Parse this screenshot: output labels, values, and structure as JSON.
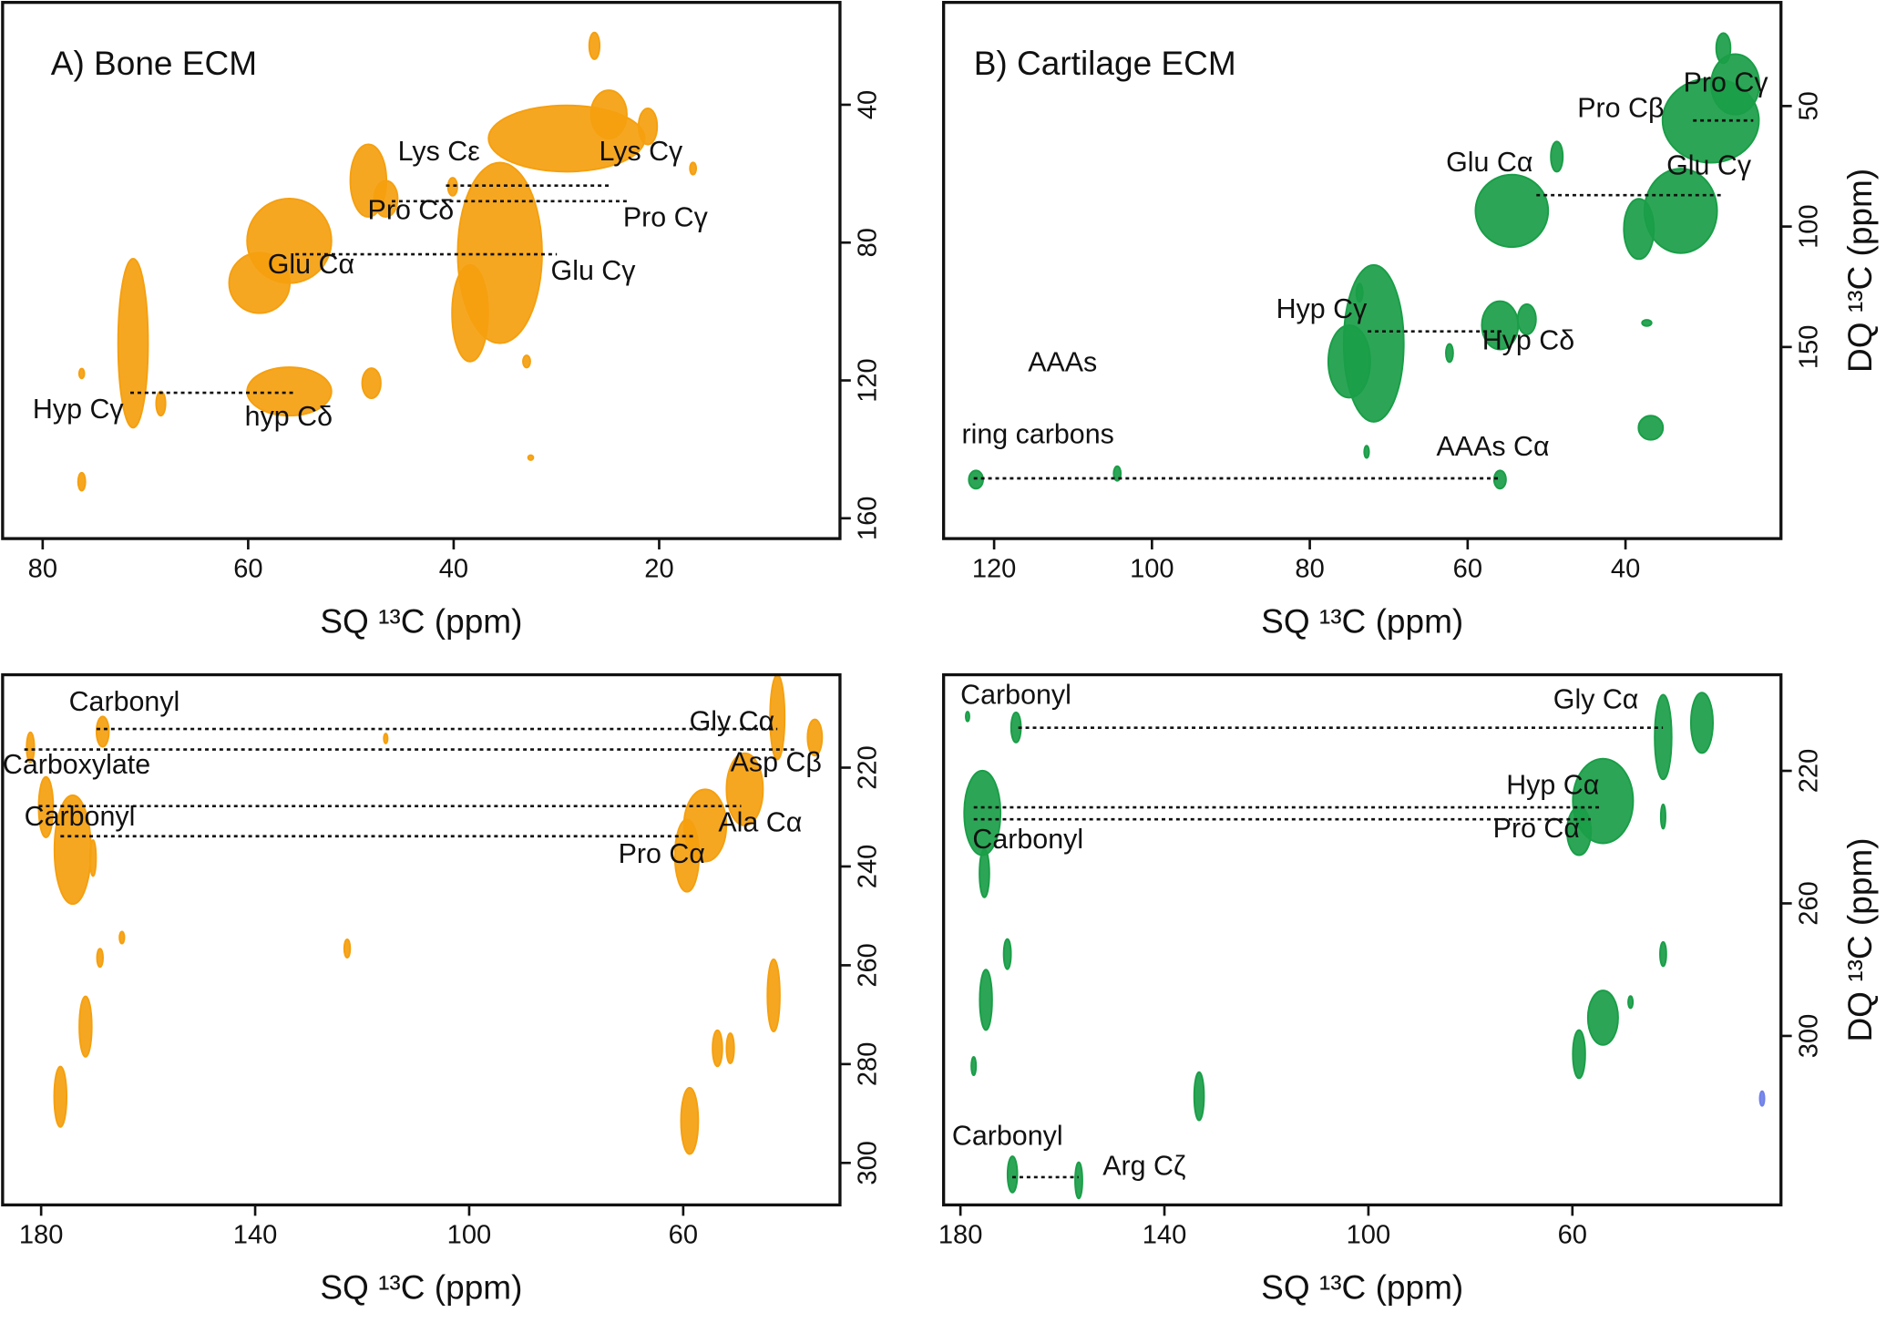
{
  "chart_data": [
    {
      "type": "contour",
      "title": "A) Bone ECM",
      "xlabel": "SQ ¹³C (ppm)",
      "xlim": [
        83.9,
        2.4
      ],
      "ylim": [
        165.9,
        10.3
      ],
      "xticks": [
        80,
        60,
        40,
        20
      ],
      "yticks": [
        40,
        80,
        120,
        160
      ],
      "series": [
        {
          "color": "#f5a00f",
          "x": [
            26.3,
            29.0,
            24.9,
            21.1,
            35.5,
            38.4,
            48.3,
            46.6,
            56.0,
            58.9,
            56.0,
            48.0,
            71.2,
            68.5,
            40.1,
            76.2,
            76.2,
            16.7,
            32.5,
            32.9
          ],
          "y": [
            22.9,
            49.8,
            42.8,
            46.3,
            83.0,
            100.5,
            62.0,
            67.3,
            79.5,
            91.7,
            123.2,
            120.8,
            109.2,
            126.7,
            63.8,
            149.4,
            118.0,
            58.5,
            142.4,
            114.5
          ],
          "x_width": [
            1.0,
            15.2,
            3.5,
            1.8,
            8.2,
            3.5,
            3.5,
            2.3,
            8.2,
            5.9,
            8.2,
            1.8,
            2.9,
            0.9,
            0.9,
            0.7,
            0.5,
            0.6,
            0.5,
            0.7
          ],
          "y_width": [
            7.7,
            19.2,
            14.0,
            10.5,
            52.4,
            28.0,
            21.0,
            10.5,
            24.5,
            17.5,
            14.0,
            8.7,
            49.0,
            7.0,
            5.2,
            5.2,
            2.8,
            3.5,
            1.4,
            3.5
          ]
        }
      ],
      "annotations": [
        "Lys Cε",
        "Lys Cγ",
        "Pro Cδ",
        "Pro Cγ",
        "Glu Cα",
        "Glu Cγ",
        "Hyp Cγ",
        "hyp Cδ"
      ]
    },
    {
      "type": "contour",
      "title": "B) Cartilage ECM",
      "xlabel": "SQ ¹³C (ppm)",
      "ylabel": "DQ ¹³C (ppm)",
      "xlim": [
        126.4,
        20.3
      ],
      "ylim": [
        229.5,
        7
      ],
      "xticks": [
        120,
        100,
        80,
        60,
        40
      ],
      "yticks": [
        50,
        100,
        150
      ],
      "series": [
        {
          "color": "#1a9e48",
          "x": [
            27.6,
            29.2,
            26.1,
            33.0,
            38.3,
            54.4,
            48.7,
            71.9,
            75.0,
            55.9,
            52.5,
            62.3,
            36.8,
            37.3,
            73.7,
            72.8,
            122.3,
            104.4,
            55.9
          ],
          "y": [
            26,
            56,
            41,
            93.5,
            101,
            93.5,
            71,
            148.5,
            156,
            141,
            138.5,
            152.5,
            183.5,
            140,
            127.5,
            193.5,
            205,
            202.5,
            205
          ],
          "x_width": [
            1.8,
            12.2,
            6.1,
            9.2,
            3.8,
            9.2,
            1.5,
            7.6,
            5.3,
            4.6,
            2.3,
            0.9,
            3.1,
            1.2,
            0.8,
            0.6,
            1.8,
            0.9,
            1.5
          ],
          "y_width": [
            12.5,
            35,
            25,
            35,
            25,
            30,
            12.5,
            65,
            30,
            20,
            12.5,
            7.5,
            10,
            2.5,
            7.5,
            5,
            7.5,
            6,
            7.5
          ]
        }
      ],
      "annotations": [
        "Pro Cγ",
        "Pro Cβ",
        "Glu Cα",
        "Glu Cγ",
        "Hyp Cγ",
        "Hyp Cδ",
        "AAAs",
        "ring carbons",
        "AAAs Cα"
      ]
    },
    {
      "type": "contour",
      "xlabel": "SQ ¹³C (ppm)",
      "xlim": [
        187.2,
        30.7
      ],
      "ylim": [
        308.5,
        201.2
      ],
      "xticks": [
        180,
        140,
        100,
        60
      ],
      "yticks": [
        220,
        240,
        260,
        280,
        300
      ],
      "series": [
        {
          "color": "#f5a00f",
          "x": [
            42.4,
            35.4,
            48.5,
            55.9,
            59.3,
            174.1,
            179.1,
            182.0,
            168.5,
            170.3,
            43.1,
            171.7,
            169.0,
            176.4,
            164.9,
            122.8,
            58.8,
            53.6,
            51.2,
            115.6
          ],
          "y": [
            209.8,
            213.9,
            224.4,
            231.7,
            237.8,
            236.6,
            228.0,
            215.9,
            212.7,
            238.3,
            266.1,
            272.4,
            258.5,
            286.6,
            254.4,
            256.6,
            291.5,
            276.8,
            276.8,
            214.1
          ],
          "x_width": [
            2.7,
            2.7,
            6.8,
            7.9,
            4.5,
            6.8,
            2.7,
            1.4,
            2.3,
            1.1,
            2.3,
            2.3,
            1.1,
            2.3,
            0.9,
            1.1,
            3.2,
            1.8,
            1.4,
            0.7
          ],
          "y_width": [
            17.1,
            7.3,
            14.6,
            14.6,
            14.6,
            22.0,
            12.2,
            6.1,
            6.1,
            7.3,
            14.6,
            12.2,
            3.7,
            12.2,
            2.4,
            3.7,
            13.4,
            7.3,
            6.1,
            2.0
          ]
        }
      ],
      "annotations": [
        "Carbonyl",
        "Gly Cα",
        "Carboxylate",
        "Asp Cβ",
        "Carbonyl",
        "Ala Cα",
        "Pro Cα"
      ]
    },
    {
      "type": "contour",
      "xlabel": "SQ ¹³C (ppm)",
      "ylabel": "DQ ¹³C (ppm)",
      "xlim": [
        183.3,
        19.1
      ],
      "ylim": [
        351,
        191
      ],
      "xticks": [
        180,
        140,
        100,
        60
      ],
      "yticks": [
        220,
        260,
        300
      ],
      "series": [
        {
          "color": "#1a9e48",
          "x": [
            42.2,
            34.6,
            54.0,
            58.7,
            175.7,
            175.3,
            169.1,
            170.8,
            175.0,
            177.4,
            42.2,
            42.2,
            54.0,
            58.7,
            48.6,
            133.2,
            169.8,
            156.8,
            178.6
          ],
          "y": [
            209.8,
            205.5,
            229.1,
            238.2,
            232.7,
            250.9,
            206.9,
            275.3,
            289.1,
            309.1,
            233.8,
            275.3,
            294.5,
            305.5,
            289.8,
            318.2,
            341.8,
            343.6,
            203.6
          ],
          "x_width": [
            3.3,
            4.3,
            11.8,
            4.7,
            7.1,
            1.9,
            1.9,
            1.4,
            2.4,
            0.9,
            0.9,
            1.2,
            5.9,
            2.4,
            0.9,
            1.9,
            1.9,
            1.4,
            0.7
          ],
          "y_width": [
            25.5,
            18.2,
            25.5,
            14.5,
            25.5,
            14.5,
            9.1,
            9.1,
            18.2,
            5.5,
            7.3,
            7.3,
            16.4,
            14.5,
            3.6,
            14.5,
            10.9,
            10.9,
            2.9
          ]
        },
        {
          "color": "#6f80e8",
          "x": [
            22.8
          ],
          "y": [
            318.9
          ],
          "x_width": [
            0.9
          ],
          "y_width": [
            4.4
          ]
        }
      ],
      "annotations": [
        "Carbonyl",
        "Gly Cα",
        "Hyp Cα",
        "Carbonyl",
        "Pro Cα",
        "Carbonyl",
        "Arg Cζ"
      ]
    }
  ]
}
